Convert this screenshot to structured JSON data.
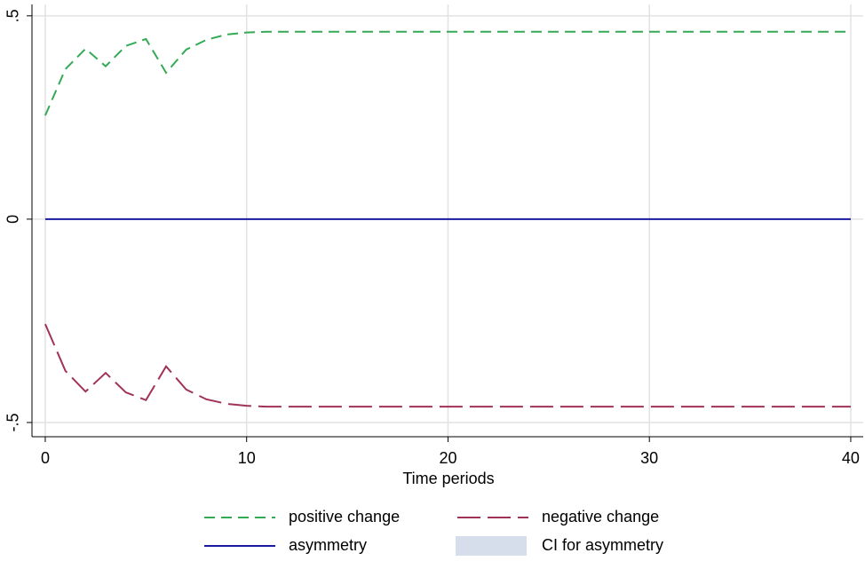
{
  "chart_data": {
    "type": "line",
    "x_label": "Time periods",
    "x": [
      0,
      1,
      2,
      3,
      4,
      5,
      6,
      7,
      8,
      9,
      10,
      11,
      12,
      13,
      14,
      15,
      16,
      17,
      18,
      19,
      20,
      21,
      22,
      23,
      24,
      25,
      26,
      27,
      28,
      29,
      30,
      31,
      32,
      33,
      34,
      35,
      36,
      37,
      38,
      39,
      40
    ],
    "series": [
      {
        "name": "positive change",
        "color": "#33aa55",
        "dash": "dash",
        "values": [
          0.255,
          0.369,
          0.419,
          0.376,
          0.426,
          0.443,
          0.36,
          0.417,
          0.441,
          0.454,
          0.459,
          0.461,
          0.461,
          0.461,
          0.461,
          0.461,
          0.461,
          0.461,
          0.461,
          0.461,
          0.461,
          0.461,
          0.461,
          0.461,
          0.461,
          0.461,
          0.461,
          0.461,
          0.461,
          0.461,
          0.461,
          0.461,
          0.461,
          0.461,
          0.461,
          0.461,
          0.461,
          0.461,
          0.461,
          0.461,
          0.461
        ]
      },
      {
        "name": "negative change",
        "color": "#a0325a",
        "dash": "longdash",
        "values": [
          -0.258,
          -0.373,
          -0.424,
          -0.378,
          -0.426,
          -0.445,
          -0.362,
          -0.419,
          -0.443,
          -0.454,
          -0.459,
          -0.461,
          -0.461,
          -0.461,
          -0.461,
          -0.461,
          -0.461,
          -0.461,
          -0.461,
          -0.461,
          -0.461,
          -0.461,
          -0.461,
          -0.461,
          -0.461,
          -0.461,
          -0.461,
          -0.461,
          -0.461,
          -0.461,
          -0.461,
          -0.461,
          -0.461,
          -0.461,
          -0.461,
          -0.461,
          -0.461,
          -0.461,
          -0.461,
          -0.461,
          -0.461
        ]
      },
      {
        "name": "asymmetry",
        "color": "#1a1aa0",
        "dash": "solid",
        "values": [
          0,
          0,
          0,
          0,
          0,
          0,
          0,
          0,
          0,
          0,
          0,
          0,
          0,
          0,
          0,
          0,
          0,
          0,
          0,
          0,
          0,
          0,
          0,
          0,
          0,
          0,
          0,
          0,
          0,
          0,
          0,
          0,
          0,
          0,
          0,
          0,
          0,
          0,
          0,
          0,
          0
        ]
      }
    ],
    "band": {
      "name": "CI for asymmetry",
      "color": "#d6deec",
      "lower": [
        0,
        0,
        0,
        0,
        0,
        0,
        0,
        0,
        0,
        0,
        0,
        0,
        0,
        0,
        0,
        0,
        0,
        0,
        0,
        0,
        0,
        0,
        0,
        0,
        0,
        0,
        0,
        0,
        0,
        0,
        0,
        0,
        0,
        0,
        0,
        0,
        0,
        0,
        0,
        0,
        0
      ],
      "upper": [
        0,
        0,
        0,
        0,
        0,
        0,
        0,
        0,
        0,
        0,
        0,
        0,
        0,
        0,
        0,
        0,
        0,
        0,
        0,
        0,
        0,
        0,
        0,
        0,
        0,
        0,
        0,
        0,
        0,
        0,
        0,
        0,
        0,
        0,
        0,
        0,
        0,
        0,
        0,
        0,
        0
      ]
    },
    "xlim": [
      -0.66,
      40.62
    ],
    "ylim": [
      -0.535,
      0.528
    ],
    "xticks": [
      0,
      10,
      20,
      30,
      40
    ],
    "yticks": [
      {
        "value": 0.5,
        "label": ".5"
      },
      0,
      {
        "value": -0.5,
        "label": "-.5"
      }
    ],
    "grid": true,
    "legend": "bottom"
  }
}
